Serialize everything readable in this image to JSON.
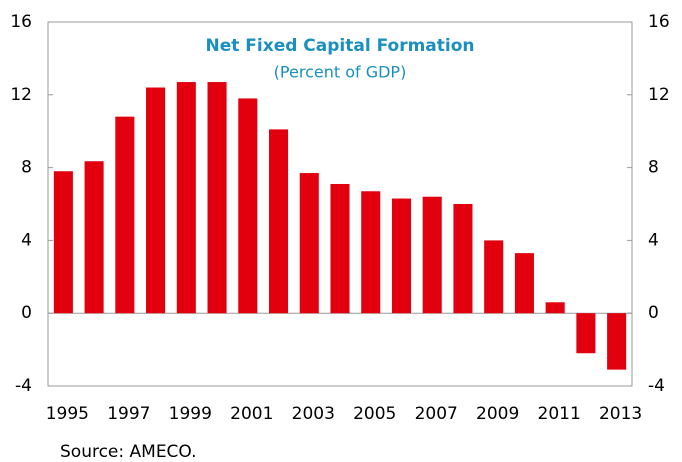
{
  "chart_data": {
    "type": "bar",
    "title": "Net Fixed Capital Formation",
    "subtitle": "(Percent of GDP)",
    "source": "Source: AMECO.",
    "categories": [
      "1995",
      null,
      "1997",
      null,
      "1999",
      null,
      "2001",
      null,
      "2003",
      null,
      "2005",
      null,
      "2007",
      null,
      "2009",
      null,
      "2011",
      null,
      "2013"
    ],
    "values": [
      7.8,
      8.35,
      10.8,
      12.4,
      12.7,
      12.7,
      11.8,
      10.1,
      7.7,
      7.1,
      6.7,
      6.3,
      6.4,
      6.0,
      4.0,
      3.3,
      0.6,
      -2.2,
      -3.1
    ],
    "color": "#e2000f",
    "ylim": [
      -4,
      16
    ],
    "yticks": [
      -4,
      0,
      4,
      8,
      12,
      16
    ],
    "y2lim": [
      -4,
      16
    ],
    "y2ticks": [
      -4,
      0,
      4,
      8,
      12,
      16
    ]
  }
}
